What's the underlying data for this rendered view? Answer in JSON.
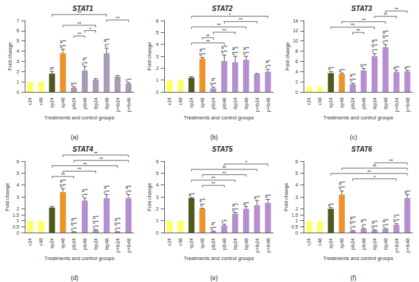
{
  "chart_data": [
    {
      "type": "bar",
      "title": "STAT1",
      "panel_label": "(a)",
      "x_label": "Treatments and control groups",
      "y_label": "Fold change",
      "categories": [
        "c24",
        "c48",
        "sp24",
        "sp48",
        "plb24",
        "plb48",
        "lbp24",
        "lbp48",
        "p+lb24",
        "p+lb48"
      ],
      "values": [
        1,
        1,
        1.8,
        3.8,
        0.4,
        2.1,
        1.2,
        3.8,
        1.5,
        0.8
      ],
      "errors": [
        0,
        0,
        0.2,
        0.4,
        0.1,
        0.4,
        0.1,
        0.5,
        0.1,
        0.1
      ],
      "annotations": [
        null,
        null,
        "a*",
        "a**\nb**",
        "b**",
        "a*\nc**",
        null,
        "a**\nc*",
        null,
        "c**"
      ],
      "brackets": [
        [
          "plb24",
          "plb48",
          "**"
        ],
        [
          "plb48",
          "lbp24",
          "*"
        ],
        [
          "sp48",
          "lbp24",
          "**"
        ],
        [
          "lbp48",
          "p+lb48",
          "**"
        ],
        [
          "sp24",
          "lbp48",
          "**"
        ]
      ],
      "colors": [
        "#ffff66",
        "#ffff66",
        "#4f5a1e",
        "#f0922a",
        "#a99bb5",
        "#a99bb5",
        "#a99bb5",
        "#a99bb5",
        "#a99bb5",
        "#a99bb5"
      ],
      "ylim": [
        0,
        7
      ],
      "yticks": [
        0,
        1,
        2,
        3,
        4,
        5,
        6,
        7
      ],
      "grid": false
    },
    {
      "type": "bar",
      "title": "STAT2",
      "panel_label": "(b)",
      "x_label": "Treatments and control groups",
      "y_label": "Fold change",
      "categories": [
        "c24",
        "c48",
        "sp24",
        "sp48",
        "plb24",
        "plb48",
        "lbp24",
        "lbp48",
        "p+lb24",
        "p+lb48"
      ],
      "values": [
        1,
        1,
        1.2,
        2.8,
        0.3,
        2.6,
        2.5,
        2.7,
        1.5,
        1.7
      ],
      "errors": [
        0,
        0,
        0.1,
        0.1,
        0.1,
        0.5,
        0.5,
        0.3,
        0.05,
        0.2
      ],
      "annotations": [
        null,
        null,
        null,
        "a**\nb**",
        "a*\nb**",
        "a**\nb**",
        "a**\nb**",
        "a**\nb**",
        null,
        "a*\nc**"
      ],
      "brackets": [
        [
          "sp24",
          "plb48",
          "**"
        ],
        [
          "sp48",
          "plb24",
          "**"
        ],
        [
          "plb24",
          "lbp24",
          "**"
        ],
        [
          "sp24",
          "lbp48",
          "**"
        ],
        [
          "plb48",
          "p+lb24",
          "**"
        ],
        [
          "sp24",
          "p+lb48",
          "*"
        ]
      ],
      "colors": [
        "#ffff66",
        "#ffff66",
        "#4f5a1e",
        "#f0922a",
        "#b58fcf",
        "#b58fcf",
        "#b58fcf",
        "#b58fcf",
        "#b58fcf",
        "#b58fcf"
      ],
      "ylim": [
        0,
        6
      ],
      "yticks": [
        0,
        1,
        2,
        3,
        4,
        5,
        6
      ],
      "grid": false
    },
    {
      "type": "bar",
      "title": "STAT3",
      "panel_label": "(c)",
      "x_label": "Treatments and control groups",
      "y_label": "Fold change",
      "categories": [
        "c24",
        "c48",
        "sp24",
        "sp48",
        "plb24",
        "plb48",
        "lbp24",
        "lbp48",
        "p+lb24",
        "p+lb48"
      ],
      "values": [
        1,
        1,
        3.7,
        3.5,
        1.5,
        4.2,
        7,
        8.8,
        3.9,
        4
      ],
      "errors": [
        0,
        0,
        0.3,
        0.2,
        0.2,
        0.4,
        0.5,
        0.5,
        0.3,
        0.2
      ],
      "annotations": [
        null,
        null,
        "a**",
        "a**",
        "a**\nb**",
        "b**",
        "a**\nb**\nc**",
        "a**\nb**\nc**",
        "a**",
        "a**"
      ],
      "brackets": [
        [
          "plb24",
          "plb48",
          "**"
        ],
        [
          "sp24",
          "lbp24",
          "**"
        ],
        [
          "sp48",
          "lbp48",
          "**"
        ],
        [
          "lbp24",
          "p+lb24",
          "**"
        ],
        [
          "lbp48",
          "p+lb48",
          "**"
        ]
      ],
      "colors": [
        "#ffff66",
        "#ffff66",
        "#4f5a1e",
        "#f0922a",
        "#b58fcf",
        "#b58fcf",
        "#b58fcf",
        "#b58fcf",
        "#b58fcf",
        "#b58fcf"
      ],
      "ylim": [
        0,
        14
      ],
      "yticks": [
        0,
        2,
        4,
        6,
        8,
        10,
        12,
        14
      ],
      "grid": false
    },
    {
      "type": "bar",
      "title": "STAT4",
      "panel_label": "(d)",
      "x_label": "Treatments and control groups",
      "y_label": "Fold change",
      "categories": [
        "c24",
        "c48",
        "sp24",
        "sp48",
        "plb24",
        "plb48",
        "lbp24",
        "lbp48",
        "p+lb24",
        "p+lb48"
      ],
      "values": [
        1,
        1,
        2.1,
        3.4,
        0.05,
        2.7,
        0.2,
        2.9,
        0.05,
        2.9
      ],
      "errors": [
        0,
        0,
        0.1,
        0.3,
        0.02,
        0.2,
        0.05,
        0.3,
        0.02,
        0.3
      ],
      "annotations": [
        null,
        null,
        null,
        "a**\nb**",
        "a**\nb**\nc**",
        "a**\nc**",
        "a**\nb**\nc**",
        "a**\nc**",
        "a**\nb**\nc**",
        "a**\nc**"
      ],
      "brackets": [
        [
          "sp24",
          "plb24",
          "**"
        ],
        [
          "sp48",
          "lbp24",
          "**"
        ],
        [
          "sp24",
          "p+lb24",
          "**"
        ],
        [
          "plb24",
          "p+lb48",
          "**"
        ],
        [
          "sp48",
          "p+lb48",
          "**"
        ]
      ],
      "colors": [
        "#ffff66",
        "#ffff66",
        "#4f5a1e",
        "#f0922a",
        "#b58fcf",
        "#b58fcf",
        "#b58fcf",
        "#b58fcf",
        "#b58fcf",
        "#b58fcf"
      ],
      "ylim": [
        0,
        6
      ],
      "yticks": [
        0,
        0.5,
        1,
        1.5,
        2,
        3,
        4,
        5,
        6
      ],
      "grid": false
    },
    {
      "type": "bar",
      "title": "STAT5",
      "panel_label": "(e)",
      "x_label": "Treatments and control groups",
      "y_label": "Fold change",
      "categories": [
        "c24",
        "c48",
        "sp24",
        "sp48",
        "plb24",
        "plb48",
        "lbp24",
        "lbp48",
        "p+lb24",
        "p+lb48"
      ],
      "values": [
        1,
        1,
        2.9,
        2,
        0.1,
        0.6,
        1.6,
        2,
        2.3,
        2.5
      ],
      "errors": [
        0,
        0,
        0.05,
        0.05,
        0.03,
        0.1,
        0.1,
        0.2,
        0.4,
        0.3
      ],
      "annotations": [
        null,
        null,
        "a**",
        "a**\nb*",
        "a*\nb**",
        "c**",
        "a**\nb**",
        "a**",
        "a**",
        "a**"
      ],
      "brackets": [
        [
          "sp48",
          "plb48",
          "**"
        ],
        [
          "sp24",
          "lbp24",
          "**"
        ],
        [
          "sp48",
          "lbp48",
          "**"
        ],
        [
          "sp24",
          "p+lb24",
          "**"
        ],
        [
          "plb48",
          "p+lb48",
          "*"
        ]
      ],
      "colors": [
        "#ffff66",
        "#ffff66",
        "#4f5a1e",
        "#f0922a",
        "#b58fcf",
        "#b58fcf",
        "#b58fcf",
        "#b58fcf",
        "#b58fcf",
        "#b58fcf"
      ],
      "ylim": [
        0,
        6
      ],
      "yticks": [
        0,
        1,
        2,
        3,
        4,
        5,
        6
      ],
      "grid": false
    },
    {
      "type": "bar",
      "title": "STAT6",
      "panel_label": "(f)",
      "x_label": "Treatments and control groups",
      "y_label": "Fold change",
      "categories": [
        "c24",
        "c48",
        "sp24",
        "sp48",
        "plb24",
        "plb48",
        "lbp24",
        "lbp48",
        "p+lb24",
        "p+lb48"
      ],
      "values": [
        0.95,
        0.95,
        2,
        3.2,
        0.15,
        0.3,
        0.2,
        0.3,
        0.65,
        2.9
      ],
      "errors": [
        0,
        0,
        0.1,
        0.3,
        0.03,
        0.05,
        0.03,
        0.05,
        0.1,
        0.3
      ],
      "annotations": [
        null,
        null,
        "a**",
        "a**\nb**",
        "a**\nb**\nc**",
        "a**\nc*",
        "a**\nb**",
        "a**\nc**",
        "c**\nb**",
        "a**"
      ],
      "brackets": [
        [
          "plb24",
          "p+lb24",
          "*"
        ],
        [
          "sp24",
          "p+lb48",
          "**"
        ],
        [
          "sp48",
          "p+lb48",
          "**"
        ],
        [
          "lbp24",
          "p+lb48",
          "**"
        ]
      ],
      "colors": [
        "#ffff66",
        "#ffff66",
        "#4f5a1e",
        "#f0922a",
        "#b58fcf",
        "#b58fcf",
        "#b58fcf",
        "#b58fcf",
        "#b58fcf",
        "#b58fcf"
      ],
      "ylim": [
        0,
        6
      ],
      "yticks": [
        0,
        0.5,
        1,
        1.5,
        2,
        3,
        4,
        5,
        6
      ],
      "grid": false
    }
  ]
}
